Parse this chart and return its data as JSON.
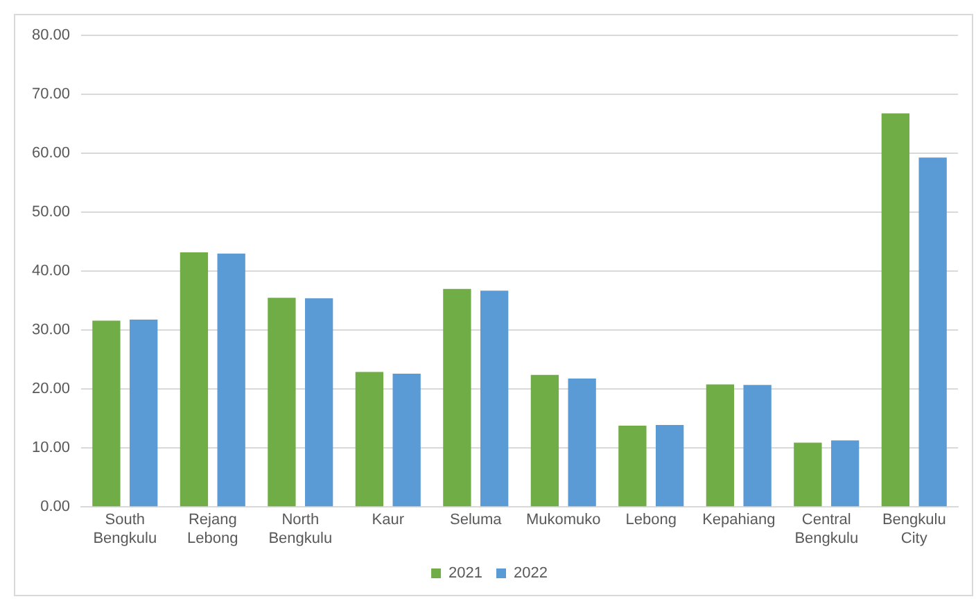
{
  "chart_data": {
    "type": "bar",
    "categories": [
      "South Bengkulu",
      "Rejang Lebong",
      "North Bengkulu",
      "Kaur",
      "Seluma",
      "Mukomuko",
      "Lebong",
      "Kepahiang",
      "Central Bengkulu",
      "Bengkulu City"
    ],
    "series": [
      {
        "name": "2021",
        "color": "#70ad47",
        "values": [
          31.6,
          43.2,
          35.5,
          22.9,
          37.0,
          22.4,
          13.8,
          20.8,
          10.9,
          66.8
        ]
      },
      {
        "name": "2022",
        "color": "#5b9bd5",
        "values": [
          31.8,
          43.0,
          35.4,
          22.6,
          36.7,
          21.8,
          13.9,
          20.7,
          11.3,
          59.3
        ]
      }
    ],
    "ylim": [
      0,
      80
    ],
    "yticks": [
      {
        "value": 0,
        "label": "0.00"
      },
      {
        "value": 10,
        "label": "10.00"
      },
      {
        "value": 20,
        "label": "20.00"
      },
      {
        "value": 30,
        "label": "30.00"
      },
      {
        "value": 40,
        "label": "40.00"
      },
      {
        "value": 50,
        "label": "50.00"
      },
      {
        "value": 60,
        "label": "60.00"
      },
      {
        "value": 70,
        "label": "70.00"
      },
      {
        "value": 80,
        "label": "80.00"
      }
    ],
    "grid": "y",
    "legend": "bottom"
  }
}
